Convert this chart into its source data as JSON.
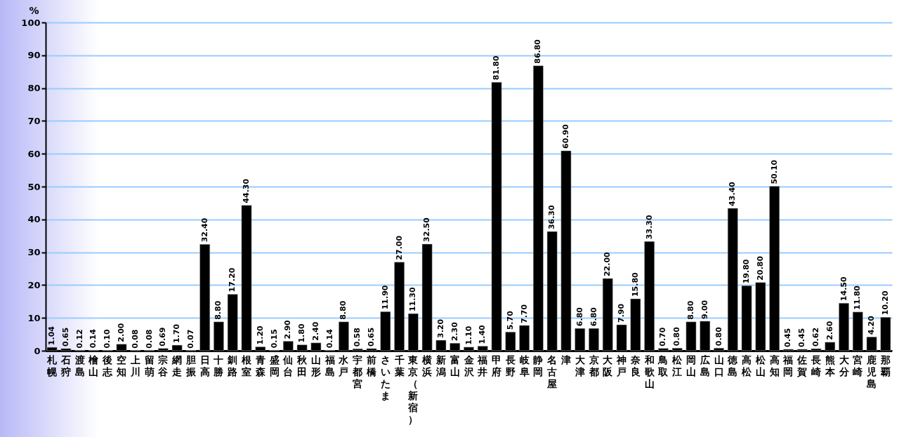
{
  "chart_data": {
    "type": "bar",
    "ylabel": "%",
    "categories": [
      "札幌",
      "石狩",
      "渡島",
      "檜山",
      "後志",
      "空知",
      "上川",
      "留萌",
      "宗谷",
      "網走",
      "胆振",
      "日高",
      "十勝",
      "釧路",
      "根室",
      "青森",
      "盛岡",
      "仙台",
      "秋田",
      "山形",
      "福島",
      "水戸",
      "宇都宮",
      "前橋",
      "さいたま",
      "千葉",
      "東京（新宿）",
      "横浜",
      "新潟",
      "富山",
      "金沢",
      "福井",
      "甲府",
      "長野",
      "岐阜",
      "静岡",
      "名古屋",
      "津",
      "大津",
      "京都",
      "大阪",
      "神戸",
      "奈良",
      "和歌山",
      "鳥取",
      "松江",
      "岡山",
      "広島",
      "山口",
      "徳島",
      "高松",
      "松山",
      "高知",
      "福岡",
      "佐賀",
      "長崎",
      "熊本",
      "大分",
      "宮崎",
      "鹿児島",
      "那覇"
    ],
    "values": [
      1.04,
      0.65,
      0.12,
      0.14,
      0.1,
      2.0,
      0.08,
      0.08,
      0.69,
      1.7,
      0.07,
      32.4,
      8.8,
      17.2,
      44.3,
      1.2,
      0.15,
      2.9,
      1.8,
      2.4,
      0.14,
      8.8,
      0.58,
      0.65,
      11.9,
      27.0,
      11.3,
      32.5,
      3.2,
      2.3,
      1.1,
      1.4,
      81.8,
      5.7,
      7.7,
      86.8,
      36.3,
      60.9,
      6.8,
      6.8,
      22.0,
      7.9,
      15.8,
      33.3,
      0.7,
      0.8,
      8.8,
      9.0,
      0.8,
      43.4,
      19.8,
      20.8,
      50.1,
      0.45,
      0.45,
      0.62,
      2.6,
      14.5,
      11.8,
      4.2,
      10.2
    ],
    "color": "#000000",
    "ylim": [
      0,
      100
    ],
    "yticks": [
      0,
      10,
      20,
      30,
      40,
      50,
      60,
      70,
      80,
      90,
      100
    ],
    "value_labels": [
      "1.04",
      "0.65",
      "0.12",
      "0.14",
      "0.10",
      "2.00",
      "0.08",
      "0.08",
      "0.69",
      "1.70",
      "0.07",
      "32.40",
      "8.80",
      "17.20",
      "44.30",
      "1.20",
      "0.15",
      "2.90",
      "1.80",
      "2.40",
      "0.14",
      "8.80",
      "0.58",
      "0.65",
      "11.90",
      "27.00",
      "11.30",
      "32.50",
      "3.20",
      "2.30",
      "1.10",
      "1.40",
      "81.80",
      "5.70",
      "7.70",
      "86.80",
      "36.30",
      "60.90",
      "6.80",
      "6.80",
      "22.00",
      "7.90",
      "15.80",
      "33.30",
      "0.70",
      "0.80",
      "8.80",
      "9.00",
      "0.80",
      "43.40",
      "19.80",
      "20.80",
      "50.10",
      "0.45",
      "0.45",
      "0.62",
      "2.60",
      "14.50",
      "11.80",
      "4.20",
      "10.20"
    ],
    "grid": "y"
  }
}
